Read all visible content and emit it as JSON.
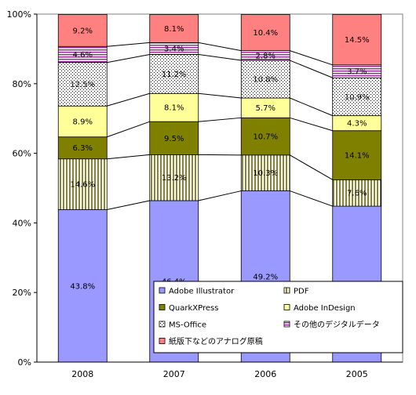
{
  "chart_data": {
    "type": "bar",
    "stacked": true,
    "percent_stacked": true,
    "categories": [
      "2008",
      "2007",
      "2006",
      "2005"
    ],
    "ylim": [
      0,
      100
    ],
    "y_ticks": [
      "0%",
      "20%",
      "40%",
      "60%",
      "80%",
      "100%"
    ],
    "y_tick_values": [
      0,
      20,
      40,
      60,
      80,
      100
    ],
    "grid": false,
    "series_lines": true,
    "legend_position": "bottom-right (inside plot)",
    "series": [
      {
        "name": "Adobe Illustrator",
        "values": [
          43.8,
          46.4,
          49.2,
          44.8
        ],
        "labels": [
          "43.8%",
          "46.4%",
          "49.2%",
          "44.8%"
        ],
        "color": "#9999ff",
        "pattern": "solid"
      },
      {
        "name": "PDF",
        "values": [
          14.6,
          13.2,
          10.3,
          7.6
        ],
        "labels": [
          "14.6%",
          "13.2%",
          "10.3%",
          "7.6%"
        ],
        "color": "#ffffcc",
        "pattern": "vertical-lines"
      },
      {
        "name": "QuarkXPress",
        "values": [
          6.3,
          9.5,
          10.7,
          14.1
        ],
        "labels": [
          "6.3%",
          "9.5%",
          "10.7%",
          "14.1%"
        ],
        "color": "#808000",
        "pattern": "solid"
      },
      {
        "name": "Adobe InDesign",
        "values": [
          8.9,
          8.1,
          5.7,
          4.3
        ],
        "labels": [
          "8.9%",
          "8.1%",
          "5.7%",
          "4.3%"
        ],
        "color": "#ffff99",
        "pattern": "solid"
      },
      {
        "name": "MS-Office",
        "values": [
          12.5,
          11.2,
          10.8,
          10.9
        ],
        "labels": [
          "12.5%",
          "11.2%",
          "10.8%",
          "10.9%"
        ],
        "color": "#ffffff",
        "pattern": "dots"
      },
      {
        "name": "その他のデジタルデータ",
        "values": [
          4.6,
          3.4,
          2.8,
          3.7
        ],
        "labels": [
          "4.6%",
          "3.4%",
          "2.8%",
          "3.7%"
        ],
        "color": "#993399",
        "pattern": "horizontal-stripes"
      },
      {
        "name": "紙版下などのアナログ原稿",
        "values": [
          9.2,
          8.1,
          10.4,
          14.5
        ],
        "labels": [
          "9.2%",
          "8.1%",
          "10.4%",
          "14.5%"
        ],
        "color": "#ff8080",
        "pattern": "solid"
      }
    ]
  }
}
